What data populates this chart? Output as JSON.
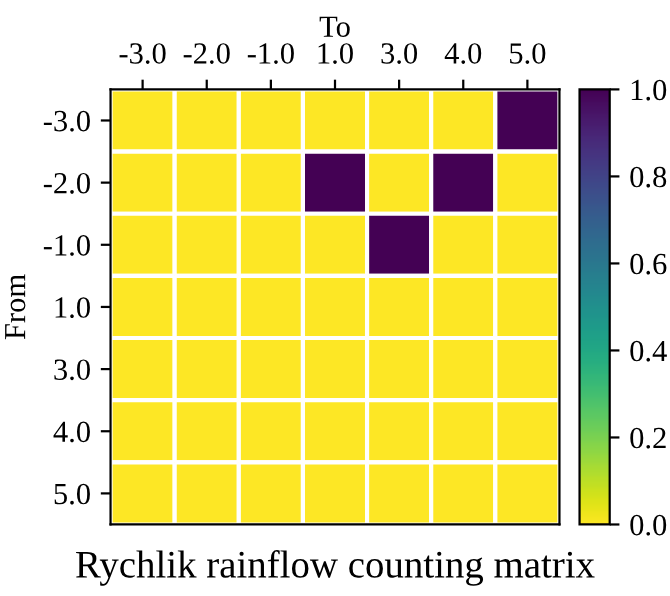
{
  "chart_data": {
    "type": "heatmap",
    "title": "Rychlik rainflow counting matrix",
    "xlabel": "To",
    "ylabel": "From",
    "categories": [
      "-3.0",
      "-2.0",
      "-1.0",
      "1.0",
      "3.0",
      "4.0",
      "5.0"
    ],
    "y_categories": [
      "-3.0",
      "-2.0",
      "-1.0",
      "1.0",
      "3.0",
      "4.0",
      "5.0"
    ],
    "cells": [
      [
        0,
        0,
        0,
        0,
        0,
        0,
        1
      ],
      [
        0,
        0,
        0,
        1,
        0,
        1,
        0
      ],
      [
        0,
        0,
        0,
        0,
        1,
        0,
        0
      ],
      [
        0,
        0,
        0,
        0,
        0,
        0,
        0
      ],
      [
        0,
        0,
        0,
        0,
        0,
        0,
        0
      ],
      [
        0,
        0,
        0,
        0,
        0,
        0,
        0
      ],
      [
        0,
        0,
        0,
        0,
        0,
        0,
        0
      ]
    ],
    "clim": [
      0.0,
      1.0
    ],
    "cticks": [
      {
        "value": 0.0,
        "label": "0.0"
      },
      {
        "value": 0.2,
        "label": "0.2"
      },
      {
        "value": 0.4,
        "label": "0.4"
      },
      {
        "value": 0.6,
        "label": "0.6"
      },
      {
        "value": 0.8,
        "label": "0.8"
      },
      {
        "value": 1.0,
        "label": "1.0"
      }
    ]
  }
}
